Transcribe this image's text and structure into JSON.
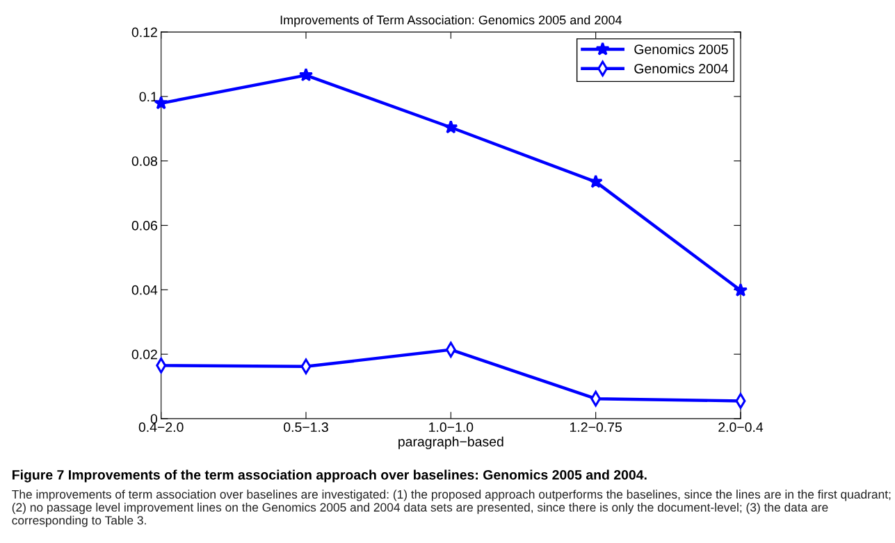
{
  "chart_data": {
    "type": "line",
    "title": "Improvements of Term Association: Genomics 2005 and 2004",
    "xlabel": "paragraph−based",
    "categories": [
      "0.4−2.0",
      "0.5−1.3",
      "1.0−1.0",
      "1.2−0.75",
      "2.0−0.4"
    ],
    "series": [
      {
        "name": "Genomics 2005",
        "color": "#0000ff",
        "marker": "star",
        "values": [
          0.0979,
          0.1066,
          0.0904,
          0.0735,
          0.0398
        ]
      },
      {
        "name": "Genomics 2004",
        "color": "#0000ff",
        "marker": "diamond",
        "values": [
          0.0165,
          0.0162,
          0.0214,
          0.0062,
          0.0055
        ]
      }
    ],
    "ylim": [
      0,
      0.12
    ],
    "yticks": [
      {
        "value": 0,
        "label": "0"
      },
      0.02,
      0.04,
      0.06,
      0.08,
      {
        "value": 0.1,
        "label": "0.1"
      },
      0.12
    ],
    "grid": false,
    "legend": "top right",
    "line_style": "solid",
    "annotations": [
      "Figure 7 Improvements of the term association approach over baselines: Genomics 2005 and 2004.",
      "The improvements of term association over baselines are investigated: (1) the proposed approach outperforms the baselines, since the lines are in the first quadrant; (2) no passage level improvement lines on the Genomics 2005 and 2004 data sets are presented, since there is only the document-level; (3) the data are corresponding to Table 3."
    ]
  }
}
